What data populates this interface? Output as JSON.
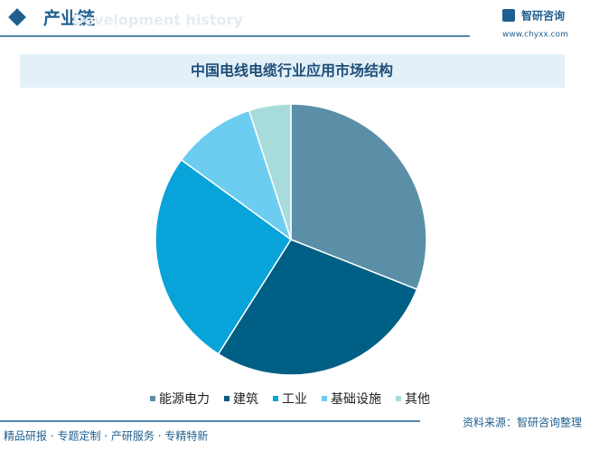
{
  "header": {
    "title": "产业链",
    "subtitle": "Development history",
    "logo": "智研咨询",
    "url": "www.chyxx.com"
  },
  "chart_data": {
    "type": "pie",
    "title": "中国电线电缆行业应用市场结构",
    "categories": [
      "能源电力",
      "建筑",
      "工业",
      "基础设施",
      "其他"
    ],
    "values": [
      31,
      28,
      26,
      10,
      5
    ],
    "colors": [
      "#5b8fa8",
      "#005f84",
      "#08a3d9",
      "#6dcdf0",
      "#a8dcdc"
    ]
  },
  "footer": {
    "left": "精品研报 · 专题定制 · 产研服务 · 专精特新",
    "source": "资料来源：智研咨询整理"
  }
}
